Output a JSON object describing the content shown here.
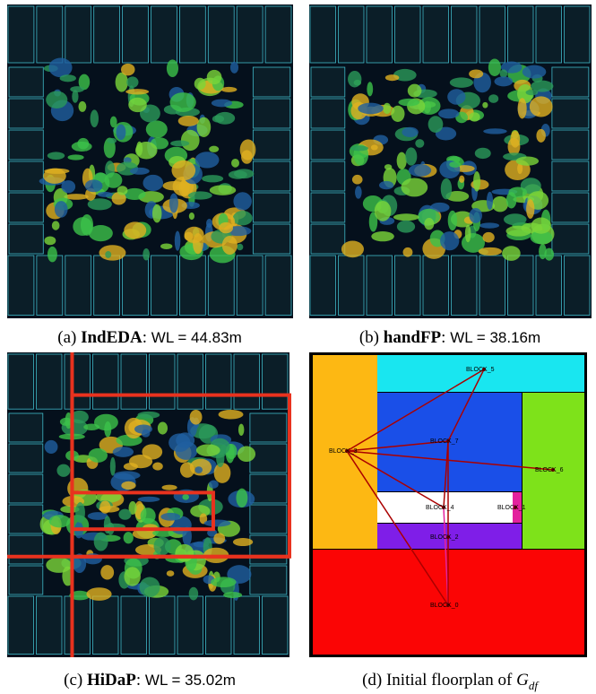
{
  "panels": [
    {
      "label": "(a)",
      "method": "IndEDA",
      "metric": "WL = 44.83m"
    },
    {
      "label": "(b)",
      "method": "handFP",
      "metric": "WL = 38.16m"
    },
    {
      "label": "(c)",
      "method": "HiDaP",
      "metric": "WL = 35.02m"
    },
    {
      "label": "(d)",
      "text": "Initial floorplan of",
      "math": "G",
      "sub": "df",
      "blocks": [
        "BLOCK_5",
        "BLOCK_7",
        "BLOCK_3",
        "BLOCK_6",
        "BLOCK_4",
        "BLOCK_1",
        "BLOCK_2",
        "BLOCK_0"
      ]
    }
  ]
}
